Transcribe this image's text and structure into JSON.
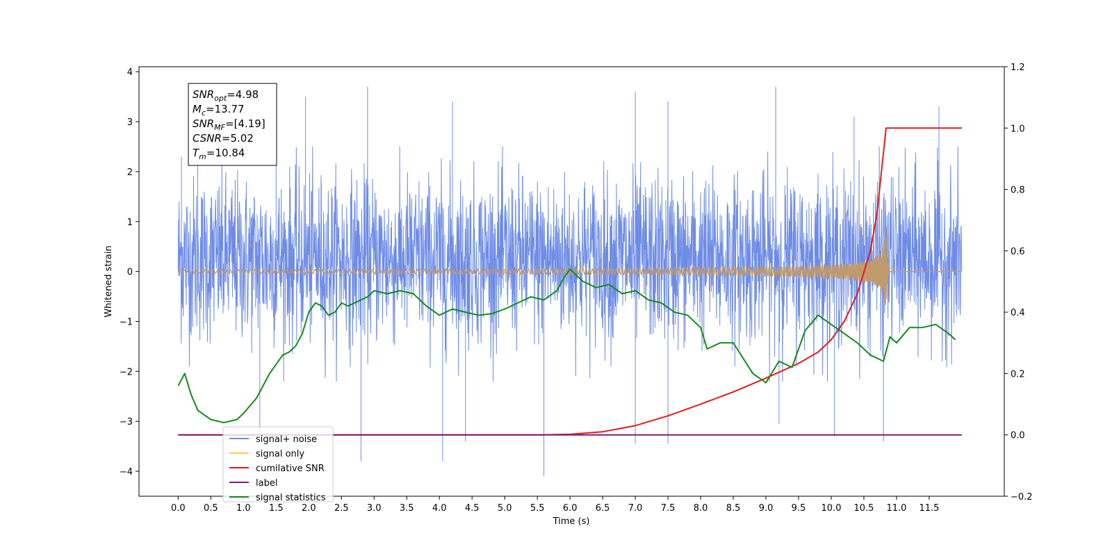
{
  "chart_data": {
    "type": "line",
    "xlabel": "Time (s)",
    "ylabel": "Whitened strain",
    "xlim": [
      -0.6,
      12.65
    ],
    "x_ticks": [
      0.0,
      0.5,
      1.0,
      1.5,
      2.0,
      2.5,
      3.0,
      3.5,
      4.0,
      4.5,
      5.0,
      5.5,
      6.0,
      6.5,
      7.0,
      7.5,
      8.0,
      8.5,
      9.0,
      9.5,
      10.0,
      10.5,
      11.0,
      11.5
    ],
    "x_tick_labels": [
      "0.0",
      "0.5",
      "1.0",
      "1.5",
      "2.0",
      "2.5",
      "3.0",
      "3.5",
      "4.0",
      "4.5",
      "5.0",
      "5.5",
      "6.0",
      "6.5",
      "7.0",
      "7.5",
      "8.0",
      "8.5",
      "9.0",
      "9.5",
      "10.0",
      "10.5",
      "11.0",
      "11.5"
    ],
    "y_left": {
      "lim": [
        -4.5,
        4.1
      ],
      "ticks": [
        -4,
        -3,
        -2,
        -1,
        0,
        1,
        2,
        3,
        4
      ],
      "tick_labels": [
        "−4",
        "−3",
        "−2",
        "−1",
        "0",
        "1",
        "2",
        "3",
        "4"
      ]
    },
    "y_right": {
      "lim": [
        -0.2,
        1.2
      ],
      "ticks": [
        -0.2,
        0.0,
        0.2,
        0.4,
        0.6,
        0.8,
        1.0,
        1.2
      ],
      "tick_labels": [
        "−0.2",
        "0.0",
        "0.2",
        "0.4",
        "0.6",
        "0.8",
        "1.0",
        "1.2"
      ]
    },
    "series": [
      {
        "name": "signal+ noise",
        "color": "#6e8ce6",
        "axis": "left",
        "kind": "noise",
        "x_range": [
          0.0,
          12.0
        ],
        "typical_band": [
          -1.7,
          2.2
        ],
        "positive_spikes": [
          [
            0.05,
            2.3
          ],
          [
            0.3,
            2.8
          ],
          [
            1.5,
            3.6
          ],
          [
            1.95,
            3.5
          ],
          [
            2.9,
            3.7
          ],
          [
            4.2,
            3.4
          ],
          [
            7.0,
            3.6
          ],
          [
            7.5,
            3.4
          ],
          [
            9.15,
            3.7
          ],
          [
            10.35,
            3.1
          ],
          [
            11.65,
            3.3
          ]
        ],
        "negative_spikes": [
          [
            1.25,
            -3.3
          ],
          [
            2.8,
            -3.8
          ],
          [
            4.05,
            -3.8
          ],
          [
            4.4,
            -3.4
          ],
          [
            5.6,
            -4.1
          ],
          [
            7.0,
            -3.45
          ],
          [
            7.5,
            -3.45
          ],
          [
            9.2,
            -3.05
          ],
          [
            10.05,
            -3.3
          ],
          [
            10.8,
            -3.4
          ]
        ]
      },
      {
        "name": "signal only",
        "color": "#c09a6c",
        "axis": "left",
        "kind": "chirp",
        "x_range": [
          0.0,
          12.0
        ],
        "merger_time": 10.84,
        "peak_amplitude": 0.9
      },
      {
        "name": "cumilative SNR",
        "color": "#e31a1c",
        "axis": "right",
        "x": [
          0.0,
          5.5,
          6.0,
          6.5,
          7.0,
          7.5,
          8.0,
          8.5,
          9.0,
          9.5,
          9.8,
          10.0,
          10.2,
          10.4,
          10.6,
          10.7,
          10.8,
          10.84,
          12.0
        ],
        "y": [
          0.0,
          0.0,
          0.002,
          0.01,
          0.03,
          0.062,
          0.1,
          0.14,
          0.185,
          0.233,
          0.27,
          0.31,
          0.37,
          0.46,
          0.6,
          0.72,
          0.92,
          1.0,
          1.0
        ]
      },
      {
        "name": "label",
        "color": "#7b1e7a",
        "axis": "right",
        "x": [
          0.0,
          12.0
        ],
        "y": [
          0.0,
          0.0
        ]
      },
      {
        "name": "signal statistics",
        "color": "#138a18",
        "axis": "right",
        "x": [
          0.0,
          0.1,
          0.2,
          0.3,
          0.4,
          0.5,
          0.6,
          0.7,
          0.8,
          0.9,
          1.0,
          1.2,
          1.4,
          1.5,
          1.6,
          1.7,
          1.8,
          1.9,
          2.0,
          2.1,
          2.2,
          2.3,
          2.4,
          2.5,
          2.6,
          2.7,
          2.8,
          2.9,
          3.0,
          3.2,
          3.4,
          3.6,
          3.8,
          4.0,
          4.2,
          4.4,
          4.6,
          4.8,
          5.0,
          5.2,
          5.4,
          5.6,
          5.8,
          5.9,
          6.0,
          6.2,
          6.4,
          6.6,
          6.8,
          7.0,
          7.2,
          7.4,
          7.6,
          7.8,
          8.0,
          8.1,
          8.3,
          8.5,
          8.8,
          9.0,
          9.2,
          9.4,
          9.6,
          9.8,
          10.0,
          10.2,
          10.4,
          10.6,
          10.8,
          10.9,
          11.0,
          11.2,
          11.4,
          11.6,
          11.8,
          11.9
        ],
        "y": [
          0.16,
          0.2,
          0.13,
          0.08,
          0.065,
          0.05,
          0.045,
          0.04,
          0.045,
          0.05,
          0.07,
          0.12,
          0.2,
          0.23,
          0.26,
          0.27,
          0.29,
          0.33,
          0.4,
          0.43,
          0.42,
          0.39,
          0.4,
          0.43,
          0.42,
          0.43,
          0.44,
          0.45,
          0.47,
          0.46,
          0.47,
          0.46,
          0.42,
          0.39,
          0.41,
          0.4,
          0.39,
          0.395,
          0.41,
          0.43,
          0.45,
          0.44,
          0.47,
          0.51,
          0.54,
          0.5,
          0.48,
          0.49,
          0.46,
          0.47,
          0.44,
          0.43,
          0.4,
          0.39,
          0.35,
          0.28,
          0.3,
          0.3,
          0.2,
          0.17,
          0.24,
          0.22,
          0.34,
          0.39,
          0.36,
          0.33,
          0.3,
          0.26,
          0.24,
          0.32,
          0.3,
          0.35,
          0.35,
          0.36,
          0.33,
          0.31
        ]
      }
    ],
    "legend": {
      "placement": "lower-left",
      "entries": [
        {
          "label": "signal+ noise",
          "color": "#6e8ce6"
        },
        {
          "label": "signal only",
          "color": "#ffc36a"
        },
        {
          "label": "cumilative SNR",
          "color": "#e31a1c"
        },
        {
          "label": "label",
          "color": "#7b1e7a"
        },
        {
          "label": "signal statistics",
          "color": "#138a18"
        }
      ]
    },
    "info_box": {
      "placement": "upper-left",
      "lines": [
        {
          "var": "SNR",
          "sub": "opt",
          "value": "=4.98"
        },
        {
          "var": "M",
          "sub": "c",
          "value": "=13.77"
        },
        {
          "var": "SNR",
          "sub": "MF",
          "value": "=[4.19]"
        },
        {
          "var": "CSNR",
          "sub": "",
          "value": "=5.02"
        },
        {
          "var": "T",
          "sub": "m",
          "value": "=10.84"
        }
      ]
    }
  }
}
